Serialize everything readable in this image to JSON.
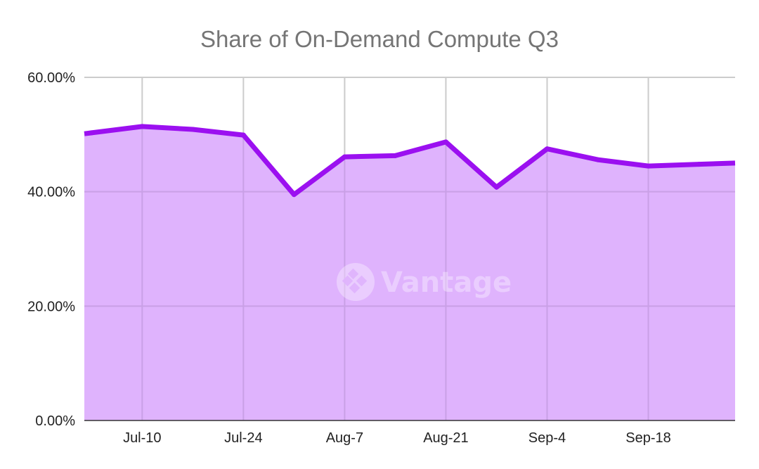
{
  "chart_data": {
    "type": "area",
    "title": "Share of On-Demand Compute Q3",
    "xlabel": "",
    "ylabel": "",
    "x": [
      "2023-07-03",
      "2023-07-10",
      "2023-07-17",
      "2023-07-24",
      "2023-07-31",
      "2023-08-07",
      "2023-08-14",
      "2023-08-21",
      "2023-08-28",
      "2023-09-04",
      "2023-09-11",
      "2023-09-18",
      "2023-09-25"
    ],
    "x_ticks": [
      {
        "date": "2023-07-10",
        "label": "Jul-10"
      },
      {
        "date": "2023-07-24",
        "label": "Jul-24"
      },
      {
        "date": "2023-08-07",
        "label": "Aug-7"
      },
      {
        "date": "2023-08-21",
        "label": "Aug-21"
      },
      {
        "date": "2023-09-04",
        "label": "Sep-4"
      },
      {
        "date": "2023-09-18",
        "label": "Sep-18"
      }
    ],
    "x_range": [
      "2023-07-02",
      "2023-09-30"
    ],
    "series": [
      {
        "values": [
          50.3,
          51.4,
          50.9,
          49.9,
          39.5,
          46.1,
          46.3,
          48.7,
          40.8,
          47.5,
          45.6,
          44.5,
          44.8
        ]
      }
    ],
    "ylim": [
      0,
      60
    ],
    "y_ticks": [
      {
        "value": 0,
        "label": "0.00%"
      },
      {
        "value": 20,
        "label": "20.00%"
      },
      {
        "value": 40,
        "label": "40.00%"
      },
      {
        "value": 60,
        "label": "60.00%"
      }
    ],
    "grid": true,
    "legend": "none",
    "colors": {
      "line": "#9b10f0",
      "fill": "#dfb3fd",
      "grid": "#cccccc",
      "title": "#757575"
    }
  },
  "watermark": {
    "text": "Vantage",
    "icon": "vantage-logo-icon"
  }
}
